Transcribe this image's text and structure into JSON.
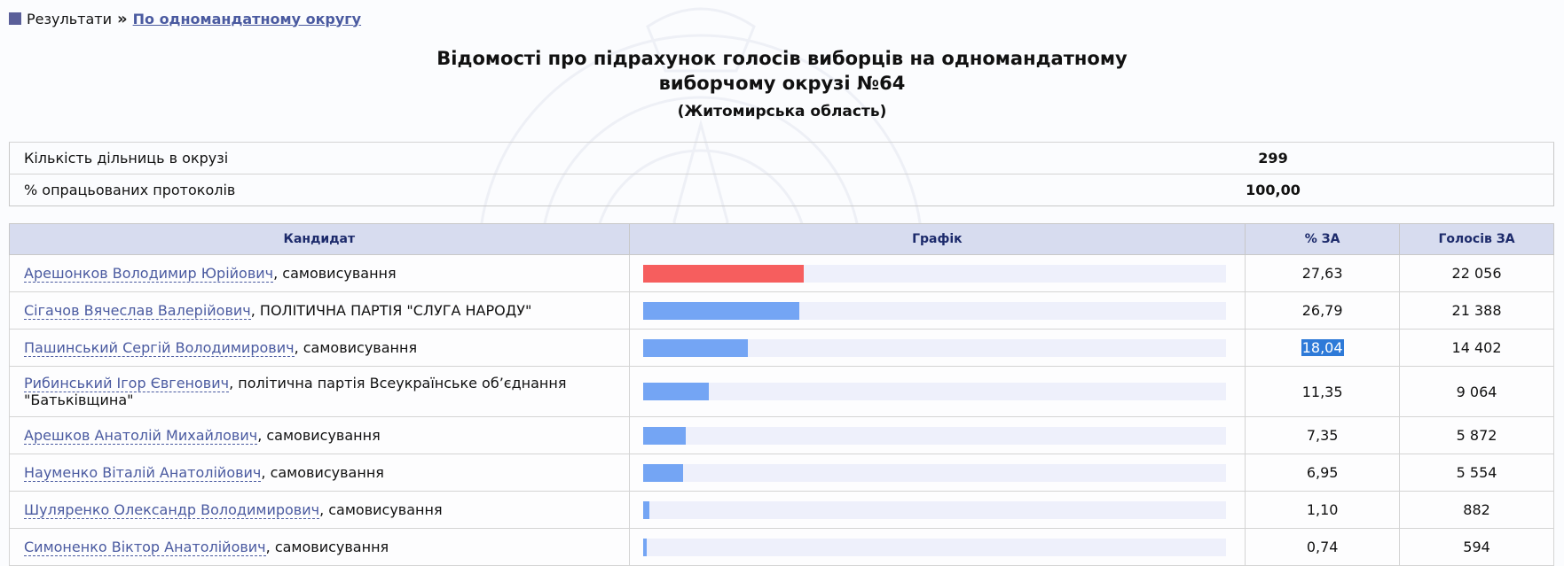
{
  "breadcrumb": {
    "root": "Результати",
    "current": "По одномандатному округу"
  },
  "title": {
    "line1": "Відомості про підрахунок голосів виборців на одномандатному",
    "line2": "виборчому окрузі №64",
    "region": "(Житомирська область)"
  },
  "summary": [
    {
      "label": "Кількість дільниць в окрузі",
      "value": "299"
    },
    {
      "label": "% опрацьованих протоколів",
      "value": "100,00"
    }
  ],
  "table": {
    "headers": {
      "candidate": "Кандидат",
      "graph": "Графік",
      "percent": "% ЗА",
      "votes": "Голосів ЗА"
    },
    "rows": [
      {
        "name": "Арешонков Володимир Юрійович",
        "party": ", самовисування",
        "percent": "27,63",
        "votes": "22 056",
        "share": 27.63
      },
      {
        "name": "Сігачов Вячеслав Валерійович",
        "party": ", ПОЛІТИЧНА ПАРТІЯ \"СЛУГА НАРОДУ\"",
        "percent": "26,79",
        "votes": "21 388",
        "share": 26.79
      },
      {
        "name": "Пашинський Сергій Володимирович",
        "party": ", самовисування",
        "percent": "18,04",
        "votes": "14 402",
        "share": 18.04
      },
      {
        "name": "Рибинський Ігор Євгенович",
        "party": ", політична партія Всеукраїнське об’єднання \"Батьківщина\"",
        "percent": "11,35",
        "votes": "9 064",
        "share": 11.35
      },
      {
        "name": "Арешков Анатолій Михайлович",
        "party": ", самовисування",
        "percent": "7,35",
        "votes": "5 872",
        "share": 7.35
      },
      {
        "name": "Науменко Віталій Анатолійович",
        "party": ", самовисування",
        "percent": "6,95",
        "votes": "5 554",
        "share": 6.95
      },
      {
        "name": "Шуляренко Олександр Володимирович",
        "party": ", самовисування",
        "percent": "1,10",
        "votes": "882",
        "share": 1.1
      },
      {
        "name": "Симоненко Віктор Анатолійович",
        "party": ", самовисування",
        "percent": "0,74",
        "votes": "594",
        "share": 0.74
      }
    ]
  },
  "colors": {
    "leader_bar": "#f65e5e",
    "bar": "#74a5f4",
    "link": "#4a5aa0",
    "header_bg": "#d7dcef"
  },
  "icons": {
    "breadcrumb_marker": "square-icon",
    "breadcrumb_separator": "double-chevron-right-icon"
  },
  "graph_scale_max_percent": 100,
  "selection_highlight_row": 2
}
